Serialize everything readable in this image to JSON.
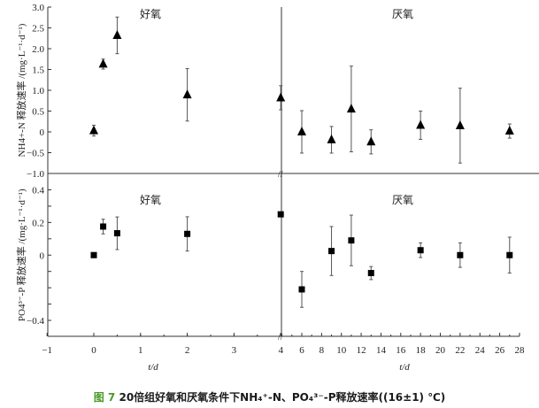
{
  "caption": {
    "figure_label": "图 7",
    "text": "20倍组好氧和厌氧条件下NH₄⁺-N、PO₄³⁻-P释放速率((16±1) ℃)"
  },
  "chart_data": [
    {
      "type": "scatter",
      "panel": "top",
      "ylabel": "NH4+-N 释放速率 /(mg·L⁻¹·d⁻¹)",
      "ylim": [
        -1.0,
        3.0
      ],
      "yticks": [
        "3.0",
        "2.5",
        "2.0",
        "1.5",
        "1.0",
        "0.5",
        "0",
        "−0.5",
        "−1.0"
      ],
      "marker": "triangle",
      "annotations": [
        "好氧",
        "厌氧"
      ],
      "points": [
        {
          "x": 0,
          "y": 0.03,
          "err": 0.13
        },
        {
          "x": 0.2,
          "y": 1.63,
          "err": 0.12
        },
        {
          "x": 0.5,
          "y": 2.32,
          "err": 0.44
        },
        {
          "x": 2,
          "y": 0.89,
          "err": 0.63
        },
        {
          "x": 4,
          "y": 0.82,
          "err": 0.29
        },
        {
          "x": 6,
          "y": 0.0,
          "err": 0.51
        },
        {
          "x": 9,
          "y": -0.19,
          "err": 0.32
        },
        {
          "x": 11,
          "y": 0.55,
          "err": 1.03
        },
        {
          "x": 13,
          "y": -0.24,
          "err": 0.29
        },
        {
          "x": 18,
          "y": 0.16,
          "err": 0.34
        },
        {
          "x": 22,
          "y": 0.15,
          "err": 0.9
        },
        {
          "x": 27,
          "y": 0.02,
          "err": 0.17
        }
      ]
    },
    {
      "type": "scatter",
      "panel": "bottom",
      "ylabel": "PO4³⁻-P 释放速率 /(mg·L⁻¹·d⁻¹)",
      "ylim": [
        -0.4,
        0.4
      ],
      "yticks": [
        "0.4",
        "0.2",
        "0",
        "−0.4"
      ],
      "marker": "square",
      "annotations": [
        "好氧",
        "厌氧"
      ],
      "points": [
        {
          "x": 0,
          "y": 0.0,
          "err": 0
        },
        {
          "x": 0.2,
          "y": 0.175,
          "err": 0.045
        },
        {
          "x": 0.5,
          "y": 0.134,
          "err": 0.1
        },
        {
          "x": 2,
          "y": 0.13,
          "err": 0.105
        },
        {
          "x": 4,
          "y": 0.25,
          "err": 0
        },
        {
          "x": 6,
          "y": -0.21,
          "err": 0.11
        },
        {
          "x": 9,
          "y": 0.025,
          "err": 0.15
        },
        {
          "x": 11,
          "y": 0.09,
          "err": 0.155
        },
        {
          "x": 13,
          "y": -0.11,
          "err": 0.04
        },
        {
          "x": 18,
          "y": 0.03,
          "err": 0.045
        },
        {
          "x": 22,
          "y": 0.0,
          "err": 0.075
        },
        {
          "x": 27,
          "y": 0.0,
          "err": 0.11
        }
      ]
    }
  ],
  "x_axis": {
    "label": "t/d",
    "left_ticks": [
      "−1",
      "0",
      "1",
      "2",
      "3",
      "4"
    ],
    "right_ticks": [
      "6",
      "8",
      "10",
      "12",
      "14",
      "16",
      "18",
      "20",
      "22",
      "24",
      "26",
      "28"
    ],
    "break_at": 4
  }
}
